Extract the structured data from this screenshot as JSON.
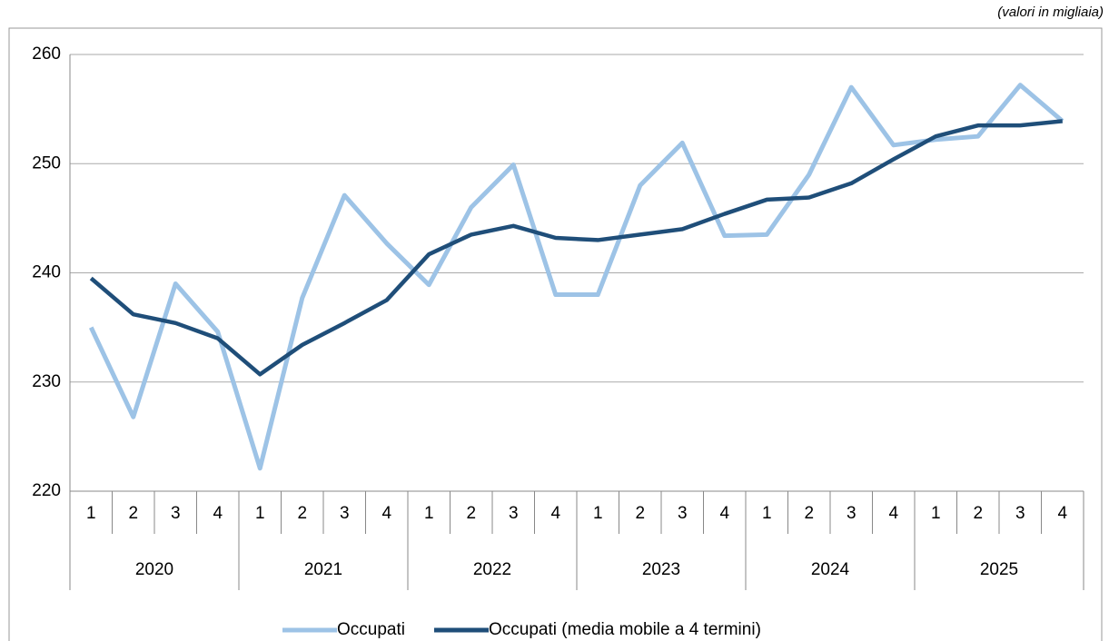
{
  "chart_data": {
    "type": "line",
    "annotation": "(valori in migliaia)",
    "categories": [
      "1",
      "2",
      "3",
      "4",
      "1",
      "2",
      "3",
      "4",
      "1",
      "2",
      "3",
      "4",
      "1",
      "2",
      "3",
      "4",
      "1",
      "2",
      "3",
      "4",
      "1",
      "2",
      "3",
      "4"
    ],
    "groups": [
      "2020",
      "2021",
      "2022",
      "2023",
      "2024",
      "2025"
    ],
    "series": [
      {
        "name": "Occupati",
        "color": "#9dc3e6",
        "values": [
          235.0,
          226.8,
          239.0,
          234.6,
          222.1,
          237.7,
          247.1,
          242.7,
          238.9,
          246.0,
          249.9,
          238.0,
          238.0,
          248.0,
          251.9,
          243.4,
          243.5,
          249.0,
          257.0,
          251.7,
          252.2,
          252.5,
          257.2,
          253.9
        ]
      },
      {
        "name": "Occupati (media mobile a 4 termini)",
        "color": "#1f4e79",
        "values": [
          239.5,
          236.2,
          235.4,
          234.0,
          230.7,
          233.4,
          235.4,
          237.5,
          241.7,
          243.5,
          244.3,
          243.2,
          243.0,
          243.5,
          244.0,
          245.4,
          246.7,
          246.9,
          248.2,
          250.4,
          252.5,
          253.5,
          253.5,
          253.9
        ]
      }
    ],
    "ylim": [
      220,
      260
    ],
    "yticks": [
      220,
      230,
      240,
      250,
      260
    ],
    "grid": true,
    "legend": "bottom"
  }
}
